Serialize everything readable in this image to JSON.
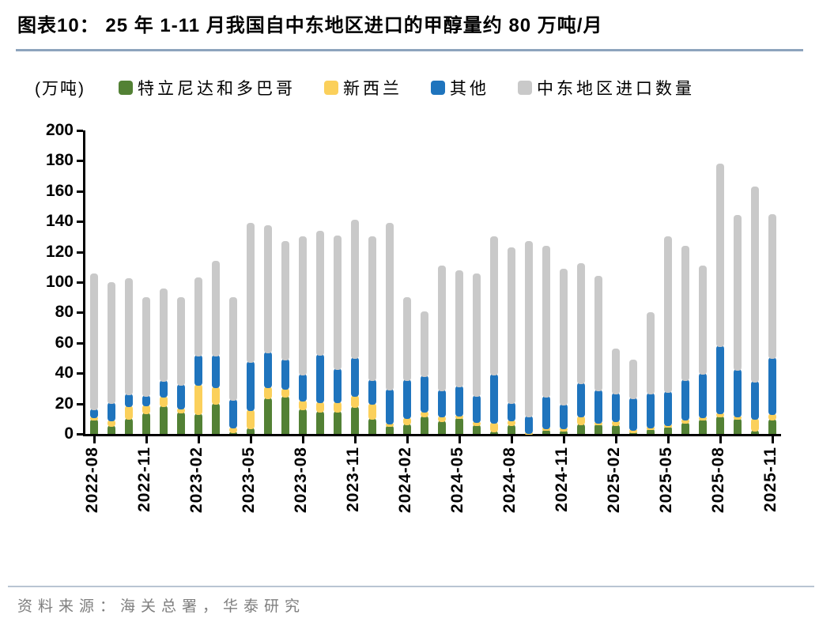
{
  "page": {
    "title": "图表10：  25 年 1-11 月我国自中东地区进口的甲醇量约 80 万吨/月",
    "source": "资料来源：海关总署，华泰研究"
  },
  "colors": {
    "green": "#538135",
    "yellow": "#fbd05b",
    "blue": "#1f74bd",
    "gray": "#c9c9c9",
    "title_rule": "#8da4bd",
    "footer_rule": "#b9c5d2",
    "source_text": "#7f7f7f",
    "axis": "#000000"
  },
  "chart_data": {
    "type": "bar",
    "stacked": true,
    "grid": false,
    "legend_position": "top",
    "unit_label": "(万吨)",
    "ylim": [
      0,
      200
    ],
    "y_ticks": [
      0,
      20,
      40,
      60,
      80,
      100,
      120,
      140,
      160,
      180,
      200
    ],
    "categories": [
      "2022-08",
      "2022-09",
      "2022-10",
      "2022-11",
      "2022-12",
      "2023-01",
      "2023-02",
      "2023-03",
      "2023-04",
      "2023-05",
      "2023-06",
      "2023-07",
      "2023-08",
      "2023-09",
      "2023-10",
      "2023-11",
      "2023-12",
      "2024-01",
      "2024-02",
      "2024-03",
      "2024-04",
      "2024-05",
      "2024-06",
      "2024-07",
      "2024-08",
      "2024-09",
      "2024-10",
      "2024-11",
      "2024-12",
      "2025-01",
      "2025-02",
      "2025-03",
      "2025-04",
      "2025-05",
      "2025-06",
      "2025-07",
      "2025-08",
      "2025-09",
      "2025-10",
      "2025-11"
    ],
    "x_tick_labels": [
      "2022-08",
      "2022-11",
      "2023-02",
      "2023-05",
      "2023-08",
      "2023-11",
      "2024-02",
      "2024-05",
      "2024-08",
      "2024-11",
      "2025-02",
      "2025-05",
      "2025-08",
      "2025-11"
    ],
    "x_tick_every": 3,
    "series": [
      {
        "name": "特立尼达和多巴哥",
        "color": "#538135",
        "values": [
          10,
          5.5,
          10.5,
          14,
          18.5,
          14.5,
          13.5,
          20.5,
          1.5,
          4,
          24,
          25,
          16.5,
          15,
          15,
          18,
          10.5,
          5.5,
          7,
          12,
          9,
          11,
          6.5,
          2,
          6.5,
          0.5,
          3,
          2.5,
          7,
          7,
          6.5,
          1.5,
          3.5,
          5,
          8,
          10,
          12,
          10.5,
          2.5,
          10
        ]
      },
      {
        "name": "新西兰",
        "color": "#fbd05b",
        "values": [
          1.5,
          4,
          8,
          5.5,
          6.5,
          2.5,
          19.5,
          10.5,
          3,
          12,
          7,
          5,
          6,
          6.5,
          6.5,
          7.5,
          10,
          2,
          4,
          3,
          3,
          1.5,
          2,
          6,
          3,
          0.5,
          1,
          1.5,
          5,
          1,
          2.5,
          1.5,
          1,
          1.5,
          2,
          1.5,
          2,
          1.5,
          8,
          3.5
        ]
      },
      {
        "name": "其他",
        "color": "#1f74bd",
        "values": [
          5,
          11.5,
          8,
          6,
          10.5,
          16,
          19,
          21,
          18.5,
          32,
          23,
          19.5,
          17,
          31,
          21.5,
          25,
          15.5,
          22,
          25,
          23.5,
          17,
          19.5,
          17,
          31.5,
          11.5,
          11,
          21,
          16,
          22,
          21,
          18,
          21,
          22.5,
          21.5,
          26,
          28.5,
          44.5,
          30.5,
          24.5,
          37
        ]
      },
      {
        "name": "中东地区进口数量",
        "color": "#c9c9c9",
        "values": [
          89.5,
          79,
          76,
          64.5,
          60.5,
          57,
          51,
          62,
          67,
          91,
          83.5,
          77.5,
          90.5,
          81.5,
          88,
          90.5,
          94,
          109.5,
          54,
          42.5,
          82,
          76,
          80.5,
          90.5,
          102,
          115,
          99,
          89,
          78.5,
          75,
          29.5,
          25,
          53,
          102,
          88,
          71,
          119.5,
          102,
          128,
          94.5
        ]
      }
    ]
  }
}
